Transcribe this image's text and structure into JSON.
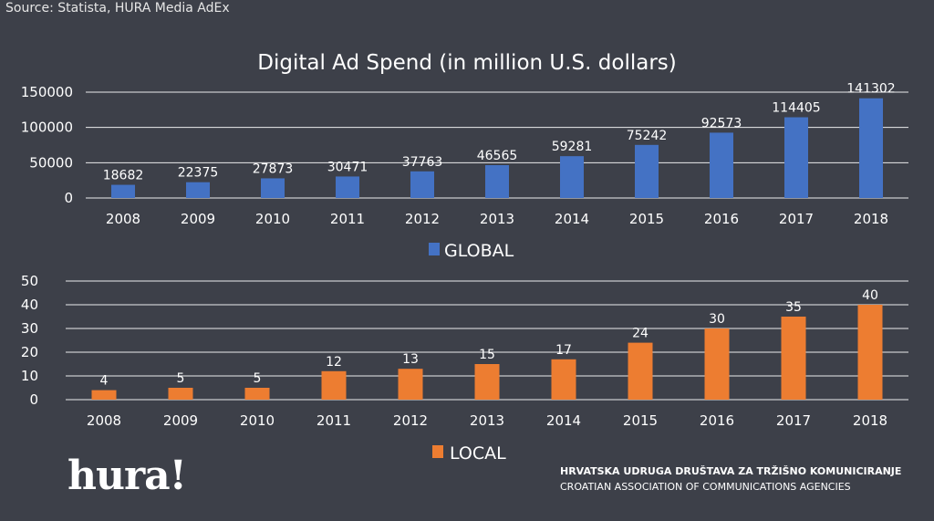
{
  "source": "Source: Statista, HURA Media AdEx",
  "title": "Digital Ad Spend (in million U.S. dollars)",
  "logo_text": "hura!",
  "org_name_hr": "HRVATSKA UDRUGA DRUŠTAVA ZA TRŽIŠNO KOMUNICIRANJE",
  "org_name_en": "CROATIAN ASSOCIATION OF COMMUNICATIONS AGENCIES",
  "colors": {
    "background": "#3d4049",
    "global": "#4472c4",
    "local": "#ed7d31",
    "text": "#ffffff",
    "grid": "#ffffff"
  },
  "chart_data": [
    {
      "type": "bar",
      "title": "Digital Ad Spend (in million U.S. dollars)",
      "categories": [
        "2008",
        "2009",
        "2010",
        "2011",
        "2012",
        "2013",
        "2014",
        "2015",
        "2016",
        "2017",
        "2018"
      ],
      "series": [
        {
          "name": "GLOBAL",
          "values": [
            18682,
            22375,
            27873,
            30471,
            37763,
            46565,
            59281,
            75242,
            92573,
            114405,
            141302
          ]
        }
      ],
      "yticks": [
        0,
        50000,
        100000,
        150000
      ],
      "ylim": [
        0,
        150000
      ],
      "grid": true,
      "legend": "bottom"
    },
    {
      "type": "bar",
      "categories": [
        "2008",
        "2009",
        "2010",
        "2011",
        "2012",
        "2013",
        "2014",
        "2015",
        "2016",
        "2017",
        "2018"
      ],
      "series": [
        {
          "name": "LOCAL",
          "values": [
            4,
            5,
            5,
            12,
            13,
            15,
            17,
            24,
            30,
            35,
            40
          ]
        }
      ],
      "yticks": [
        0,
        10,
        20,
        30,
        40,
        50
      ],
      "ylim": [
        0,
        50
      ],
      "grid": true,
      "legend": "bottom"
    }
  ]
}
